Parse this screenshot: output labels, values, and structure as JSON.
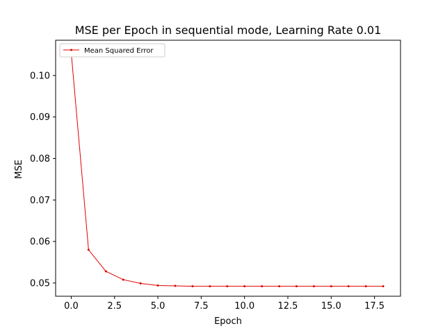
{
  "chart_data": {
    "type": "line",
    "title": "MSE per Epoch in sequential mode, Learning Rate 0.01",
    "xlabel": "Epoch",
    "ylabel": "MSE",
    "xlim": [
      -0.9,
      19.0
    ],
    "ylim": [
      0.0468,
      0.1085
    ],
    "xticks": [
      0.0,
      2.5,
      5.0,
      7.5,
      10.0,
      12.5,
      15.0,
      17.5
    ],
    "xtick_labels": [
      "0.0",
      "2.5",
      "5.0",
      "7.5",
      "10.0",
      "12.5",
      "15.0",
      "17.5"
    ],
    "yticks": [
      0.05,
      0.06,
      0.07,
      0.08,
      0.09,
      0.1
    ],
    "ytick_labels": [
      "0.05",
      "0.06",
      "0.07",
      "0.08",
      "0.09",
      "0.10"
    ],
    "grid": false,
    "legend_position": "top-left",
    "series": [
      {
        "name": "Mean Squared Error",
        "color": "#e00000",
        "x": [
          0,
          1,
          2,
          3,
          4,
          5,
          6,
          7,
          8,
          9,
          10,
          11,
          12,
          13,
          14,
          15,
          16,
          17,
          18
        ],
        "y": [
          0.1055,
          0.058,
          0.0528,
          0.0508,
          0.0499,
          0.0494,
          0.0493,
          0.0492,
          0.0492,
          0.0492,
          0.0492,
          0.0492,
          0.0492,
          0.0492,
          0.0492,
          0.0492,
          0.0492,
          0.0492,
          0.0492
        ]
      }
    ]
  }
}
